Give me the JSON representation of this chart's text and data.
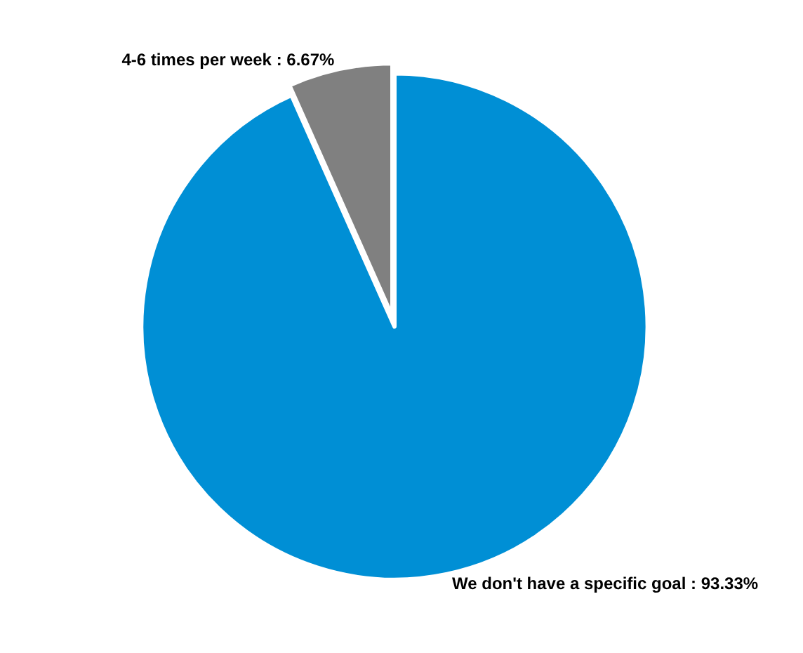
{
  "chart_data": {
    "type": "pie",
    "categories": [
      "We don't have a specific goal",
      "4-6 times per week"
    ],
    "values": [
      93.33,
      6.67
    ],
    "value_labels": [
      "93.33%",
      "6.67%"
    ],
    "colors": [
      "#008fd5",
      "#808080"
    ],
    "legend": false
  }
}
